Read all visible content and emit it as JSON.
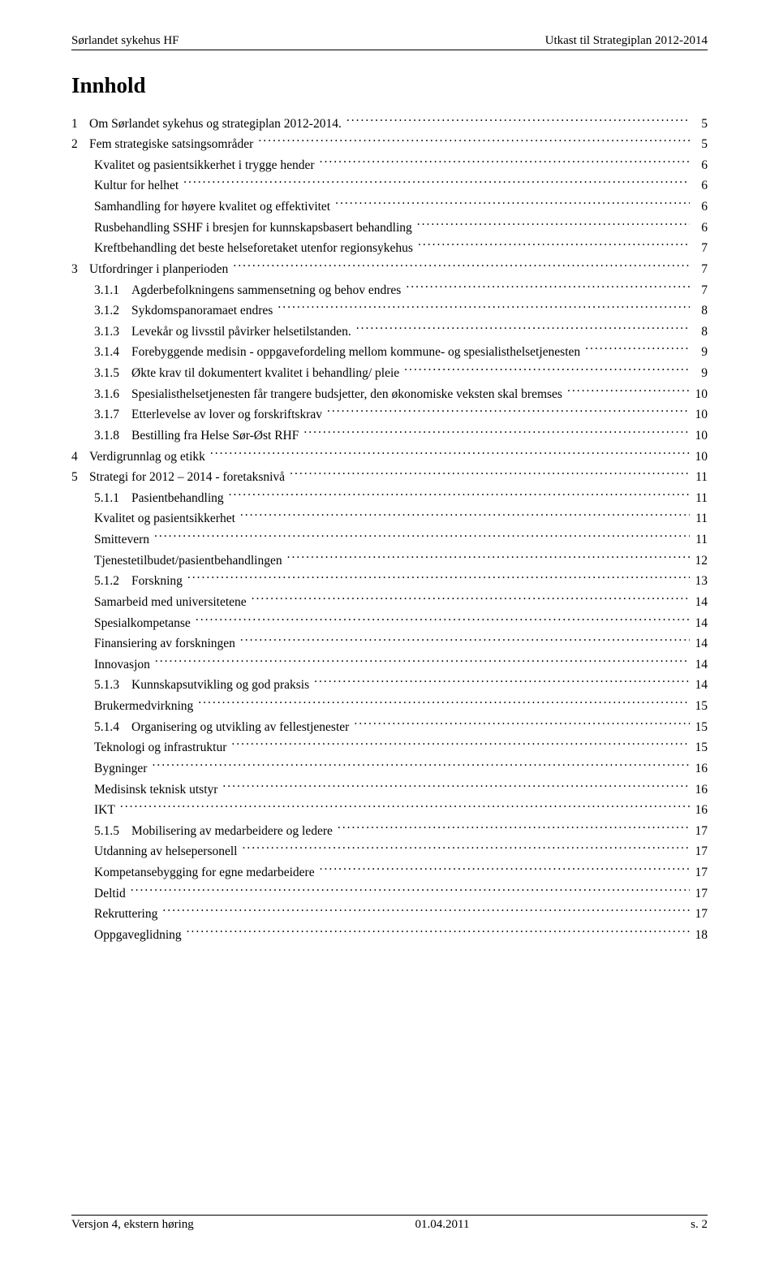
{
  "header": {
    "left": "Sørlandet sykehus HF",
    "right": "Utkast til Strategiplan 2012-2014"
  },
  "title": "Innhold",
  "toc": [
    {
      "level": 1,
      "num": "1",
      "label": "Om Sørlandet sykehus og strategiplan 2012-2014.",
      "page": "5"
    },
    {
      "level": 1,
      "num": "2",
      "label": "Fem strategiske satsingsområder",
      "page": "5"
    },
    {
      "level": 2,
      "num": "",
      "label": "Kvalitet og pasientsikkerhet i trygge hender",
      "page": "6"
    },
    {
      "level": 2,
      "num": "",
      "label": "Kultur for helhet",
      "page": "6"
    },
    {
      "level": 2,
      "num": "",
      "label": "Samhandling for høyere kvalitet og effektivitet",
      "page": "6"
    },
    {
      "level": 2,
      "num": "",
      "label": "Rusbehandling SSHF i bresjen for kunnskapsbasert behandling",
      "page": "6"
    },
    {
      "level": 2,
      "num": "",
      "label": "Kreftbehandling det beste helseforetaket utenfor regionsykehus",
      "page": "7"
    },
    {
      "level": 1,
      "num": "3",
      "label": "Utfordringer i planperioden",
      "page": "7"
    },
    {
      "level": 3,
      "num": "3.1.1",
      "label": "Agderbefolkningens sammensetning og behov endres",
      "page": "7"
    },
    {
      "level": 3,
      "num": "3.1.2",
      "label": "Sykdomspanoramaet endres",
      "page": "8"
    },
    {
      "level": 3,
      "num": "3.1.3",
      "label": "Levekår og livsstil påvirker helsetilstanden.",
      "page": "8"
    },
    {
      "level": 3,
      "num": "3.1.4",
      "label": "Forebyggende medisin - oppgavefordeling mellom kommune- og spesialisthelsetjenesten",
      "page": "9"
    },
    {
      "level": 3,
      "num": "3.1.5",
      "label": "Økte krav til dokumentert kvalitet i behandling/ pleie",
      "page": "9"
    },
    {
      "level": 3,
      "num": "3.1.6",
      "label": "Spesialisthelsetjenesten får trangere budsjetter, den økonomiske veksten skal bremses",
      "page": "10"
    },
    {
      "level": 3,
      "num": "3.1.7",
      "label": "Etterlevelse av lover og forskriftskrav",
      "page": "10"
    },
    {
      "level": 3,
      "num": "3.1.8",
      "label": "Bestilling fra Helse Sør-Øst RHF",
      "page": "10"
    },
    {
      "level": 1,
      "num": "4",
      "label": "Verdigrunnlag og etikk",
      "page": "10"
    },
    {
      "level": 1,
      "num": "5",
      "label": "Strategi for 2012 – 2014 - foretaksnivå",
      "page": "11"
    },
    {
      "level": 3,
      "num": "5.1.1",
      "label": "Pasientbehandling",
      "page": "11"
    },
    {
      "level": 4,
      "num": "",
      "label": "Kvalitet og pasientsikkerhet",
      "page": "11"
    },
    {
      "level": 4,
      "num": "",
      "label": "Smittevern",
      "page": "11"
    },
    {
      "level": 4,
      "num": "",
      "label": "Tjenestetilbudet/pasientbehandlingen",
      "page": "12"
    },
    {
      "level": 3,
      "num": "5.1.2",
      "label": "Forskning",
      "page": "13"
    },
    {
      "level": 4,
      "num": "",
      "label": "Samarbeid med universitetene",
      "page": "14"
    },
    {
      "level": 4,
      "num": "",
      "label": "Spesialkompetanse",
      "page": "14"
    },
    {
      "level": 4,
      "num": "",
      "label": "Finansiering av forskningen",
      "page": "14"
    },
    {
      "level": 4,
      "num": "",
      "label": "Innovasjon",
      "page": "14"
    },
    {
      "level": 3,
      "num": "5.1.3",
      "label": "Kunnskapsutvikling og god praksis",
      "page": "14"
    },
    {
      "level": 4,
      "num": "",
      "label": "Brukermedvirkning",
      "page": "15"
    },
    {
      "level": 3,
      "num": "5.1.4",
      "label": "Organisering og utvikling av fellestjenester",
      "page": "15"
    },
    {
      "level": 4,
      "num": "",
      "label": "Teknologi og infrastruktur",
      "page": "15"
    },
    {
      "level": 4,
      "num": "",
      "label": "Bygninger",
      "page": "16"
    },
    {
      "level": 4,
      "num": "",
      "label": "Medisinsk teknisk utstyr",
      "page": "16"
    },
    {
      "level": 4,
      "num": "",
      "label": "IKT",
      "page": "16"
    },
    {
      "level": 3,
      "num": "5.1.5",
      "label": "Mobilisering av medarbeidere og ledere",
      "page": "17"
    },
    {
      "level": 4,
      "num": "",
      "label": "Utdanning av helsepersonell",
      "page": "17"
    },
    {
      "level": 4,
      "num": "",
      "label": "Kompetansebygging for egne medarbeidere",
      "page": "17"
    },
    {
      "level": 4,
      "num": "",
      "label": "Deltid",
      "page": "17"
    },
    {
      "level": 4,
      "num": "",
      "label": "Rekruttering",
      "page": "17"
    },
    {
      "level": 4,
      "num": "",
      "label": "Oppgaveglidning",
      "page": "18"
    }
  ],
  "footer": {
    "left": "Versjon 4, ekstern høring",
    "center": "01.04.2011",
    "right": "s. 2"
  }
}
